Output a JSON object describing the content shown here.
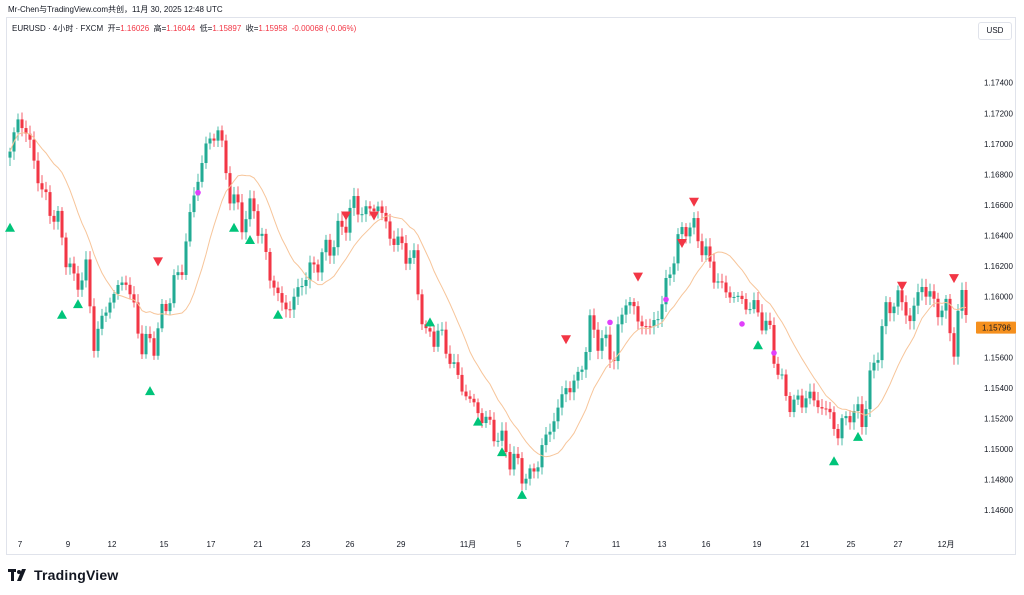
{
  "page": {
    "title": "Mr-Chen与TradingView.com共创，11月 30, 2025 12:48 UTC",
    "currency_button": "USD",
    "brand": "TradingView"
  },
  "legend": {
    "symbol": "EURUSD · 4小时 · FXCM",
    "open_label": "开=",
    "open": "1.16026",
    "high_label": "高=",
    "high": "1.16044",
    "low_label": "低=",
    "low": "1.15897",
    "close_label": "收=",
    "close": "1.15958",
    "change": "-0.00068 (-0.06%)"
  },
  "chart_data": {
    "type": "candlestick",
    "symbol": "EURUSD",
    "timeframe": "4h",
    "ylim": [
      1.1447,
      1.1768
    ],
    "y_ticks": [
      "1.17400",
      "1.17200",
      "1.17000",
      "1.16800",
      "1.16600",
      "1.16400",
      "1.16200",
      "1.16000",
      "1.15800",
      "1.15600",
      "1.15400",
      "1.15200",
      "1.15000",
      "1.14800",
      "1.14600"
    ],
    "x_ticks": [
      "7",
      "9",
      "12",
      "15",
      "17",
      "21",
      "23",
      "26",
      "29",
      "11月",
      "5",
      "7",
      "11",
      "13",
      "16",
      "19",
      "21",
      "25",
      "27",
      "12月"
    ],
    "last_price": "1.15796",
    "colors": {
      "up": "#22ab94",
      "down": "#f23645",
      "ma": "#f7c59a",
      "buy_signal": "#00c47a",
      "sell_signal": "#f23645",
      "dot": "#e040fb",
      "price_tag": "#f5901e"
    },
    "path_anchors": [
      {
        "i": 0,
        "p": 1.1692
      },
      {
        "i": 2,
        "p": 1.1718
      },
      {
        "i": 5,
        "p": 1.17
      },
      {
        "i": 8,
        "p": 1.1668
      },
      {
        "i": 12,
        "p": 1.1648
      },
      {
        "i": 16,
        "p": 1.1608
      },
      {
        "i": 19,
        "p": 1.1617
      },
      {
        "i": 21,
        "p": 1.157
      },
      {
        "i": 25,
        "p": 1.1598
      },
      {
        "i": 29,
        "p": 1.1612
      },
      {
        "i": 33,
        "p": 1.1568
      },
      {
        "i": 36,
        "p": 1.157
      },
      {
        "i": 39,
        "p": 1.1595
      },
      {
        "i": 43,
        "p": 1.162
      },
      {
        "i": 46,
        "p": 1.1667
      },
      {
        "i": 49,
        "p": 1.1698
      },
      {
        "i": 52,
        "p": 1.171
      },
      {
        "i": 55,
        "p": 1.1668
      },
      {
        "i": 58,
        "p": 1.165
      },
      {
        "i": 61,
        "p": 1.1658
      },
      {
        "i": 64,
        "p": 1.1625
      },
      {
        "i": 67,
        "p": 1.1598
      },
      {
        "i": 70,
        "p": 1.1592
      },
      {
        "i": 73,
        "p": 1.161
      },
      {
        "i": 76,
        "p": 1.162
      },
      {
        "i": 80,
        "p": 1.1633
      },
      {
        "i": 83,
        "p": 1.1645
      },
      {
        "i": 86,
        "p": 1.166
      },
      {
        "i": 89,
        "p": 1.1655
      },
      {
        "i": 92,
        "p": 1.166
      },
      {
        "i": 95,
        "p": 1.164
      },
      {
        "i": 98,
        "p": 1.1632
      },
      {
        "i": 101,
        "p": 1.1622
      },
      {
        "i": 104,
        "p": 1.1572
      },
      {
        "i": 107,
        "p": 1.1577
      },
      {
        "i": 110,
        "p": 1.156
      },
      {
        "i": 113,
        "p": 1.154
      },
      {
        "i": 116,
        "p": 1.1528
      },
      {
        "i": 119,
        "p": 1.1518
      },
      {
        "i": 122,
        "p": 1.1508
      },
      {
        "i": 125,
        "p": 1.1495
      },
      {
        "i": 128,
        "p": 1.1485
      },
      {
        "i": 130,
        "p": 1.148
      },
      {
        "i": 133,
        "p": 1.15
      },
      {
        "i": 136,
        "p": 1.152
      },
      {
        "i": 139,
        "p": 1.154
      },
      {
        "i": 142,
        "p": 1.1545
      },
      {
        "i": 145,
        "p": 1.158
      },
      {
        "i": 148,
        "p": 1.157
      },
      {
        "i": 151,
        "p": 1.1562
      },
      {
        "i": 154,
        "p": 1.16
      },
      {
        "i": 157,
        "p": 1.1585
      },
      {
        "i": 160,
        "p": 1.1578
      },
      {
        "i": 163,
        "p": 1.1595
      },
      {
        "i": 166,
        "p": 1.1628
      },
      {
        "i": 169,
        "p": 1.1648
      },
      {
        "i": 172,
        "p": 1.164
      },
      {
        "i": 175,
        "p": 1.162
      },
      {
        "i": 178,
        "p": 1.1605
      },
      {
        "i": 181,
        "p": 1.16
      },
      {
        "i": 184,
        "p": 1.1595
      },
      {
        "i": 187,
        "p": 1.159
      },
      {
        "i": 190,
        "p": 1.1575
      },
      {
        "i": 193,
        "p": 1.154
      },
      {
        "i": 196,
        "p": 1.1528
      },
      {
        "i": 199,
        "p": 1.1535
      },
      {
        "i": 202,
        "p": 1.153
      },
      {
        "i": 205,
        "p": 1.1522
      },
      {
        "i": 207,
        "p": 1.151
      },
      {
        "i": 210,
        "p": 1.1525
      },
      {
        "i": 213,
        "p": 1.152
      },
      {
        "i": 216,
        "p": 1.1555
      },
      {
        "i": 219,
        "p": 1.159
      },
      {
        "i": 222,
        "p": 1.16
      },
      {
        "i": 225,
        "p": 1.1585
      },
      {
        "i": 228,
        "p": 1.1608
      },
      {
        "i": 231,
        "p": 1.1595
      },
      {
        "i": 234,
        "p": 1.159
      },
      {
        "i": 236,
        "p": 1.1568
      },
      {
        "i": 238,
        "p": 1.16
      },
      {
        "i": 239,
        "p": 1.1596
      }
    ],
    "signals": [
      {
        "type": "buy",
        "i": 0,
        "p": 1.1645
      },
      {
        "type": "buy",
        "i": 13,
        "p": 1.1588
      },
      {
        "type": "buy",
        "i": 17,
        "p": 1.1595
      },
      {
        "type": "sell",
        "i": 37,
        "p": 1.1623
      },
      {
        "type": "buy",
        "i": 35,
        "p": 1.1538
      },
      {
        "type": "dot",
        "i": 47,
        "p": 1.1668
      },
      {
        "type": "buy",
        "i": 56,
        "p": 1.1645
      },
      {
        "type": "buy",
        "i": 60,
        "p": 1.1637
      },
      {
        "type": "buy",
        "i": 67,
        "p": 1.1588
      },
      {
        "type": "sell",
        "i": 84,
        "p": 1.1653
      },
      {
        "type": "sell",
        "i": 91,
        "p": 1.1653
      },
      {
        "type": "buy",
        "i": 105,
        "p": 1.1583
      },
      {
        "type": "buy",
        "i": 117,
        "p": 1.1518
      },
      {
        "type": "buy",
        "i": 123,
        "p": 1.1498
      },
      {
        "type": "buy",
        "i": 128,
        "p": 1.147
      },
      {
        "type": "sell",
        "i": 139,
        "p": 1.1572
      },
      {
        "type": "dot",
        "i": 150,
        "p": 1.1583
      },
      {
        "type": "sell",
        "i": 157,
        "p": 1.1613
      },
      {
        "type": "dot",
        "i": 164,
        "p": 1.1598
      },
      {
        "type": "sell",
        "i": 168,
        "p": 1.1635
      },
      {
        "type": "sell",
        "i": 171,
        "p": 1.1662
      },
      {
        "type": "dot",
        "i": 183,
        "p": 1.1582
      },
      {
        "type": "buy",
        "i": 187,
        "p": 1.1568
      },
      {
        "type": "dot",
        "i": 191,
        "p": 1.1563
      },
      {
        "type": "buy",
        "i": 206,
        "p": 1.1492
      },
      {
        "type": "buy",
        "i": 212,
        "p": 1.1508
      },
      {
        "type": "sell",
        "i": 223,
        "p": 1.1607
      },
      {
        "type": "sell",
        "i": 236,
        "p": 1.1612
      }
    ]
  }
}
